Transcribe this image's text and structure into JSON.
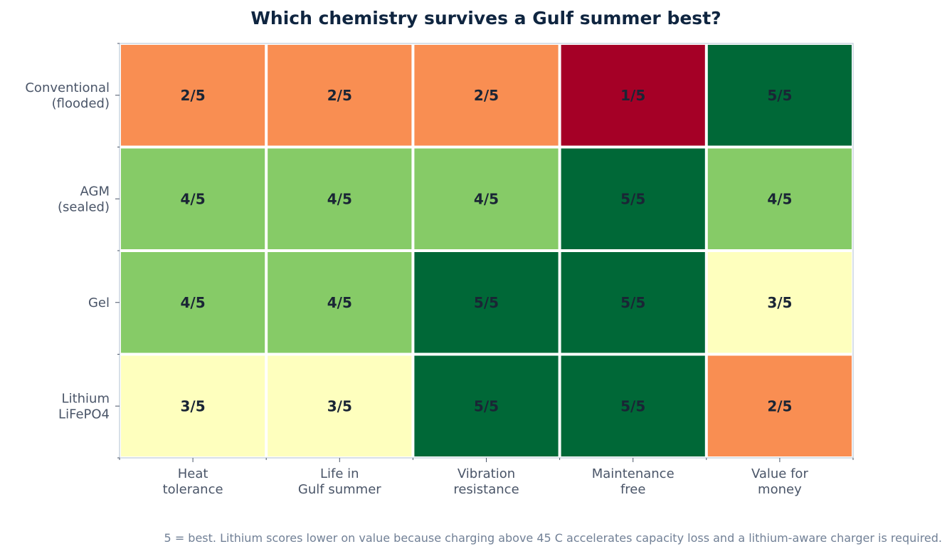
{
  "chart_data": {
    "type": "heatmap",
    "title": "Which chemistry survives a Gulf summer best?",
    "rows": [
      [
        "Conventional",
        "(flooded)"
      ],
      [
        "AGM",
        "(sealed)"
      ],
      [
        "Gel"
      ],
      [
        "Lithium",
        "LiFePO4"
      ]
    ],
    "columns": [
      [
        "Heat",
        "tolerance"
      ],
      [
        "Life in",
        "Gulf summer"
      ],
      [
        "Vibration",
        "resistance"
      ],
      [
        "Maintenance",
        "free"
      ],
      [
        "Value for",
        "money"
      ]
    ],
    "values": [
      [
        2,
        2,
        2,
        1,
        5
      ],
      [
        4,
        4,
        4,
        5,
        4
      ],
      [
        4,
        4,
        5,
        5,
        3
      ],
      [
        3,
        3,
        5,
        5,
        2
      ]
    ],
    "max_score": 5,
    "score_format": "{v}/5",
    "color_scale": {
      "1": "#a50026",
      "2": "#f98e52",
      "3": "#feffbe",
      "4": "#86cb67",
      "5": "#006837"
    },
    "footnote": "5 = best. Lithium scores lower on value because charging above 45 C accelerates capacity loss and a lithium-aware charger is required."
  }
}
